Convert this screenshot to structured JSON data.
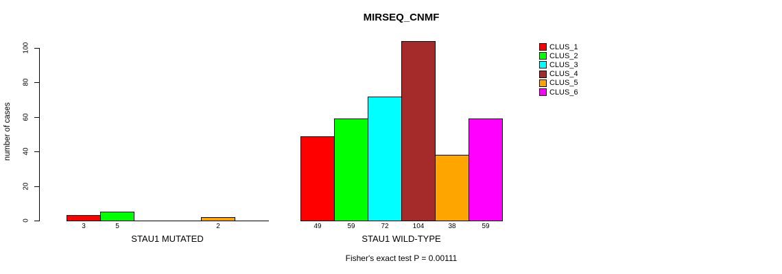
{
  "chart_data": {
    "type": "bar",
    "title": "MIRSEQ_CNMF",
    "ylabel": "number of cases",
    "subtitle": "Fisher's exact test P = 0.00111",
    "y_ticks": [
      0,
      20,
      40,
      60,
      80,
      100
    ],
    "ylim": [
      0,
      104
    ],
    "grid": false,
    "legend_position": "right",
    "series": [
      {
        "name": "CLUS_1",
        "color": "#FF0000"
      },
      {
        "name": "CLUS_2",
        "color": "#00FF00"
      },
      {
        "name": "CLUS_3",
        "color": "#00FFFF"
      },
      {
        "name": "CLUS_4",
        "color": "#A52A2A"
      },
      {
        "name": "CLUS_5",
        "color": "#FFA500"
      },
      {
        "name": "CLUS_6",
        "color": "#FF00FF"
      }
    ],
    "groups": [
      {
        "label": "STAU1 MUTATED",
        "values": [
          3,
          5,
          0,
          0,
          2,
          0
        ]
      },
      {
        "label": "STAU1 WILD-TYPE",
        "values": [
          49,
          59,
          72,
          104,
          38,
          59
        ]
      }
    ]
  }
}
